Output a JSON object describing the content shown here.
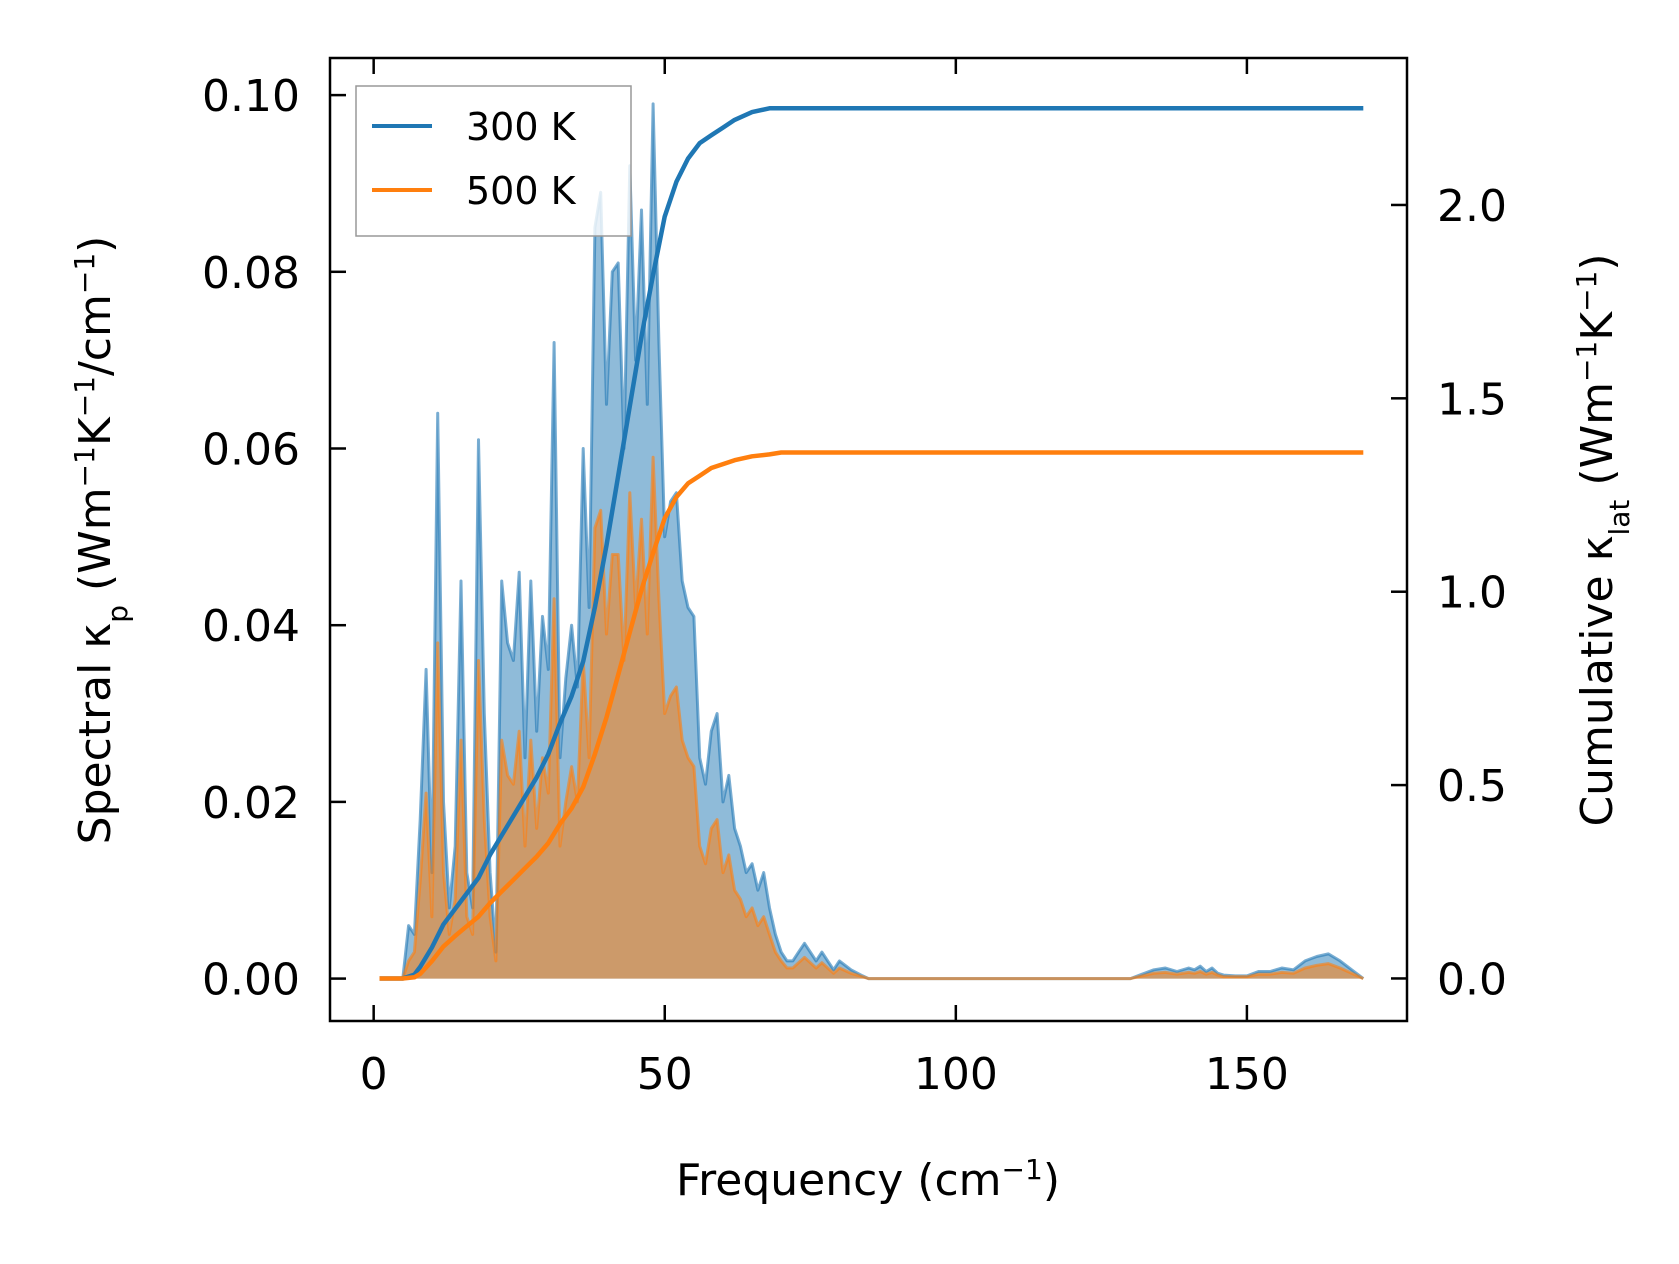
{
  "chart_data": {
    "type": "line",
    "title": "",
    "xlabel": "Frequency (cm−1)",
    "xlabel_parts": {
      "main": "Frequency (cm",
      "sup": "−1",
      "close": ")"
    },
    "ylabel_left": "Spectral κp (Wm−1K−1/cm−1)",
    "ylabel_left_parts": {
      "a": "Spectral κ",
      "sub": "p",
      "b": " (Wm",
      "sup1": "−1",
      "c": "K",
      "sup2": "−1",
      "d": "/cm",
      "sup3": "−1",
      "e": ")"
    },
    "ylabel_right": "Cumulative κlat (Wm−1K−1)",
    "ylabel_right_parts": {
      "a": "Cumulative κ",
      "sub": "lat",
      "b": " (Wm",
      "sup1": "−1",
      "c": "K",
      "sup2": "−1",
      "d": ")"
    },
    "xlim": [
      -7.5,
      177.5
    ],
    "ylim_left": [
      -0.0048,
      0.1042
    ],
    "ylim_right": [
      -0.11,
      2.38
    ],
    "xticks": [
      0,
      50,
      100,
      150
    ],
    "xtick_labels": [
      "0",
      "50",
      "100",
      "150"
    ],
    "yticks_left": [
      0.0,
      0.02,
      0.04,
      0.06,
      0.08,
      0.1
    ],
    "ytick_labels_left": [
      "0.00",
      "0.02",
      "0.04",
      "0.06",
      "0.08",
      "0.10"
    ],
    "yticks_right": [
      0.0,
      0.5,
      1.0,
      1.5,
      2.0
    ],
    "ytick_labels_right": [
      "0.0",
      "0.5",
      "1.0",
      "1.5",
      "2.0"
    ],
    "legend": {
      "position": "top-left",
      "entries": [
        "300 K",
        "500 K"
      ]
    },
    "grid": false,
    "spectral_series": [
      {
        "name": "300 K",
        "color": "#1f77b4",
        "axis": "left",
        "x": [
          1,
          3,
          5,
          6,
          7,
          8,
          9,
          10,
          11,
          12,
          13,
          14,
          15,
          16,
          17,
          18,
          19,
          20,
          21,
          22,
          23,
          24,
          25,
          26,
          27,
          28,
          29,
          30,
          31,
          32,
          33,
          34,
          35,
          36,
          37,
          38,
          39,
          40,
          41,
          42,
          43,
          44,
          45,
          46,
          47,
          48,
          49,
          50,
          51,
          52,
          53,
          54,
          55,
          56,
          57,
          58,
          59,
          60,
          61,
          62,
          63,
          64,
          65,
          66,
          67,
          68,
          69,
          70,
          71,
          72,
          73,
          74,
          75,
          76,
          77,
          78,
          79,
          80,
          82,
          84,
          85,
          86,
          88,
          90,
          100,
          110,
          120,
          130,
          132,
          134,
          136,
          138,
          140,
          141,
          142,
          143,
          144,
          145,
          146,
          148,
          150,
          152,
          154,
          156,
          158,
          160,
          162,
          164,
          166,
          168,
          170
        ],
        "y": [
          0,
          0,
          0,
          0.006,
          0.005,
          0.018,
          0.035,
          0.012,
          0.064,
          0.02,
          0.008,
          0.015,
          0.045,
          0.012,
          0.008,
          0.061,
          0.03,
          0.012,
          0.003,
          0.045,
          0.038,
          0.036,
          0.046,
          0.025,
          0.045,
          0.028,
          0.041,
          0.035,
          0.072,
          0.025,
          0.034,
          0.04,
          0.033,
          0.06,
          0.042,
          0.085,
          0.089,
          0.065,
          0.08,
          0.081,
          0.06,
          0.092,
          0.07,
          0.087,
          0.065,
          0.099,
          0.072,
          0.05,
          0.054,
          0.055,
          0.045,
          0.042,
          0.041,
          0.025,
          0.022,
          0.028,
          0.03,
          0.02,
          0.023,
          0.017,
          0.015,
          0.012,
          0.013,
          0.01,
          0.012,
          0.008,
          0.005,
          0.003,
          0.002,
          0.002,
          0.003,
          0.004,
          0.003,
          0.002,
          0.003,
          0.002,
          0.001,
          0.002,
          0.001,
          0.0003,
          0,
          0,
          0,
          0,
          0,
          0,
          0,
          0,
          0.0005,
          0.001,
          0.0012,
          0.0008,
          0.0012,
          0.001,
          0.0014,
          0.0008,
          0.0012,
          0.0006,
          0.0004,
          0.0003,
          0.0003,
          0.0008,
          0.0008,
          0.0012,
          0.001,
          0.002,
          0.0025,
          0.0028,
          0.002,
          0.001,
          0
        ]
      },
      {
        "name": "500 K",
        "color": "#ff7f0e",
        "axis": "left",
        "x": [
          1,
          3,
          5,
          6,
          7,
          8,
          9,
          10,
          11,
          12,
          13,
          14,
          15,
          16,
          17,
          18,
          19,
          20,
          21,
          22,
          23,
          24,
          25,
          26,
          27,
          28,
          29,
          30,
          31,
          32,
          33,
          34,
          35,
          36,
          37,
          38,
          39,
          40,
          41,
          42,
          43,
          44,
          45,
          46,
          47,
          48,
          49,
          50,
          51,
          52,
          53,
          54,
          55,
          56,
          57,
          58,
          59,
          60,
          61,
          62,
          63,
          64,
          65,
          66,
          67,
          68,
          69,
          70,
          71,
          72,
          73,
          74,
          75,
          76,
          77,
          78,
          79,
          80,
          82,
          84,
          85,
          86,
          88,
          90,
          100,
          110,
          120,
          130,
          132,
          134,
          136,
          138,
          140,
          141,
          142,
          143,
          144,
          145,
          146,
          148,
          150,
          152,
          154,
          156,
          158,
          160,
          162,
          164,
          166,
          168,
          170
        ],
        "y": [
          0,
          0,
          0,
          0.002,
          0.003,
          0.011,
          0.021,
          0.007,
          0.038,
          0.012,
          0.005,
          0.009,
          0.027,
          0.007,
          0.005,
          0.036,
          0.018,
          0.007,
          0.002,
          0.027,
          0.023,
          0.022,
          0.028,
          0.015,
          0.027,
          0.017,
          0.025,
          0.021,
          0.043,
          0.015,
          0.02,
          0.024,
          0.02,
          0.036,
          0.025,
          0.051,
          0.053,
          0.039,
          0.048,
          0.048,
          0.036,
          0.055,
          0.042,
          0.052,
          0.039,
          0.059,
          0.043,
          0.03,
          0.032,
          0.033,
          0.027,
          0.025,
          0.024,
          0.015,
          0.013,
          0.017,
          0.018,
          0.012,
          0.014,
          0.01,
          0.009,
          0.007,
          0.008,
          0.006,
          0.007,
          0.005,
          0.003,
          0.002,
          0.0012,
          0.0012,
          0.0018,
          0.0024,
          0.0018,
          0.0012,
          0.0018,
          0.0012,
          0.0006,
          0.0012,
          0.0006,
          0.0002,
          0,
          0,
          0,
          0,
          0,
          0,
          0,
          0,
          0.0003,
          0.0006,
          0.0007,
          0.0005,
          0.0007,
          0.0006,
          0.0008,
          0.0005,
          0.0007,
          0.0004,
          0.0002,
          0.0002,
          0.0002,
          0.0005,
          0.0005,
          0.0007,
          0.0006,
          0.0012,
          0.0015,
          0.0017,
          0.0012,
          0.0006,
          0
        ]
      }
    ],
    "cumulative_series": [
      {
        "name": "300 K",
        "color": "#1f77b4",
        "axis": "right",
        "x": [
          1,
          5,
          7,
          8,
          10,
          12,
          14,
          16,
          18,
          20,
          22,
          24,
          26,
          28,
          30,
          32,
          34,
          36,
          38,
          40,
          42,
          44,
          46,
          48,
          50,
          52,
          54,
          56,
          58,
          60,
          62,
          65,
          68,
          70,
          75,
          80,
          85,
          90,
          100,
          130,
          140,
          150,
          155,
          160,
          165,
          170
        ],
        "y": [
          0,
          0,
          0.01,
          0.03,
          0.08,
          0.14,
          0.18,
          0.22,
          0.26,
          0.32,
          0.37,
          0.42,
          0.47,
          0.52,
          0.58,
          0.66,
          0.73,
          0.82,
          0.96,
          1.12,
          1.3,
          1.48,
          1.66,
          1.82,
          1.97,
          2.06,
          2.12,
          2.16,
          2.18,
          2.2,
          2.22,
          2.24,
          2.25,
          2.25,
          2.25,
          2.25,
          2.25,
          2.25,
          2.25,
          2.25,
          2.25,
          2.25,
          2.25,
          2.25,
          2.25,
          2.25
        ]
      },
      {
        "name": "500 K",
        "color": "#ff7f0e",
        "axis": "right",
        "x": [
          1,
          5,
          7,
          8,
          10,
          12,
          14,
          16,
          18,
          20,
          22,
          24,
          26,
          28,
          30,
          32,
          34,
          36,
          38,
          40,
          42,
          44,
          46,
          48,
          50,
          52,
          54,
          56,
          58,
          60,
          62,
          65,
          68,
          70,
          75,
          80,
          85,
          90,
          100,
          130,
          140,
          150,
          155,
          160,
          165,
          170
        ],
        "y": [
          0,
          0,
          0.003,
          0.012,
          0.045,
          0.083,
          0.11,
          0.135,
          0.16,
          0.195,
          0.225,
          0.255,
          0.285,
          0.315,
          0.35,
          0.4,
          0.44,
          0.495,
          0.58,
          0.675,
          0.785,
          0.895,
          1.005,
          1.1,
          1.19,
          1.245,
          1.28,
          1.3,
          1.32,
          1.33,
          1.34,
          1.35,
          1.355,
          1.36,
          1.36,
          1.36,
          1.36,
          1.36,
          1.36,
          1.36,
          1.36,
          1.36,
          1.36,
          1.36,
          1.36,
          1.36
        ]
      }
    ]
  }
}
